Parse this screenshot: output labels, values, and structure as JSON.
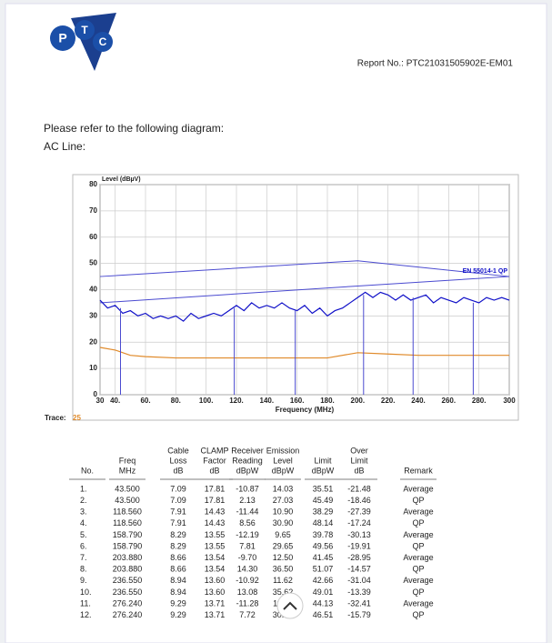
{
  "header": {
    "logo": [
      "P",
      "T",
      "C"
    ],
    "report_no": "Report No.: PTC21031505902E-EM01"
  },
  "intro": "Please refer to the following diagram:",
  "section": "AC Line:",
  "chart_data": {
    "type": "line",
    "y_label": "Level (dBµV)",
    "x_label": "Frequency (MHz)",
    "limit_label": "EN 55014-1 QP",
    "trace_label": "Trace:",
    "trace_no": "25",
    "xlim": [
      30,
      300
    ],
    "ylim": [
      0,
      80
    ],
    "xticks": [
      30,
      {
        "value": 40,
        "label": "40."
      },
      {
        "value": 60,
        "label": "60."
      },
      {
        "value": 80,
        "label": "80."
      },
      {
        "value": 100,
        "label": "100."
      },
      {
        "value": 120,
        "label": "120."
      },
      {
        "value": 140,
        "label": "140."
      },
      {
        "value": 160,
        "label": "160."
      },
      {
        "value": 180,
        "label": "180."
      },
      {
        "value": 200,
        "label": "200."
      },
      {
        "value": 220,
        "label": "220."
      },
      {
        "value": 240,
        "label": "240."
      },
      {
        "value": 260,
        "label": "260."
      },
      {
        "value": 280,
        "label": "280."
      },
      300
    ],
    "yticks": [
      0,
      10,
      20,
      30,
      40,
      50,
      60,
      70,
      80
    ],
    "grid": true,
    "series": [
      {
        "color": "#4a4ad0",
        "x": [
          30,
          200,
          300
        ],
        "values": [
          45,
          51,
          45
        ]
      },
      {
        "color": "#4a4ad0",
        "x": [
          30,
          200,
          300
        ],
        "values": [
          35,
          41.4,
          45
        ]
      },
      {
        "color": "#1010c8",
        "x": [
          30,
          35,
          40,
          45,
          50,
          55,
          60,
          65,
          70,
          75,
          80,
          85,
          90,
          95,
          100,
          105,
          110,
          115,
          120,
          125,
          130,
          135,
          140,
          145,
          150,
          155,
          160,
          165,
          170,
          175,
          180,
          185,
          190,
          195,
          200,
          205,
          210,
          215,
          220,
          225,
          230,
          235,
          240,
          245,
          250,
          255,
          260,
          265,
          270,
          275,
          280,
          285,
          290,
          295,
          300
        ],
        "values": [
          36,
          33,
          34,
          31,
          32,
          30,
          31,
          29,
          30,
          29,
          30,
          28,
          31,
          29,
          30,
          31,
          30,
          32,
          34,
          32,
          35,
          33,
          34,
          33,
          35,
          33,
          32,
          34,
          31,
          33,
          30,
          32,
          33,
          35,
          37,
          39,
          37,
          39,
          38,
          36,
          38,
          36,
          37,
          38,
          35,
          37,
          36,
          35,
          37,
          36,
          35,
          37,
          36,
          37,
          36
        ]
      },
      {
        "color": "#e08a2a",
        "x": [
          30,
          40,
          50,
          60,
          80,
          100,
          120,
          140,
          160,
          180,
          200,
          220,
          240,
          260,
          280,
          300
        ],
        "values": [
          18,
          17,
          15,
          14.5,
          14,
          14,
          14,
          14,
          14,
          14,
          16,
          15.5,
          15,
          15,
          15,
          15
        ]
      }
    ],
    "markers": {
      "color": "#4a4ad0",
      "x": [
        43.5,
        118.56,
        158.79,
        203.88,
        236.55,
        276.24
      ],
      "values": [
        33,
        33,
        32,
        38,
        37,
        35
      ]
    }
  },
  "table": {
    "header": [
      [
        "No."
      ],
      [
        "Freq",
        "MHz"
      ],
      [
        "Cable",
        "Loss",
        "dB"
      ],
      [
        "CLAMP",
        "Factor",
        "dB"
      ],
      [
        "Receiver",
        "Reading",
        "dBpW"
      ],
      [
        "Emission",
        "Level",
        "dBpW"
      ],
      [
        "Limit",
        "dBpW"
      ],
      [
        "Over",
        "Limit",
        "dB"
      ],
      [
        "Remark"
      ]
    ],
    "rows": [
      [
        "1.",
        "43.500",
        "7.09",
        "17.81",
        "-10.87",
        "14.03",
        "35.51",
        "-21.48",
        "Average"
      ],
      [
        "2.",
        "43.500",
        "7.09",
        "17.81",
        "2.13",
        "27.03",
        "45.49",
        "-18.46",
        "QP"
      ],
      [
        "3.",
        "118.560",
        "7.91",
        "14.43",
        "-11.44",
        "10.90",
        "38.29",
        "-27.39",
        "Average"
      ],
      [
        "4.",
        "118.560",
        "7.91",
        "14.43",
        "8.56",
        "30.90",
        "48.14",
        "-17.24",
        "QP"
      ],
      [
        "5.",
        "158.790",
        "8.29",
        "13.55",
        "-12.19",
        "9.65",
        "39.78",
        "-30.13",
        "Average"
      ],
      [
        "6.",
        "158.790",
        "8.29",
        "13.55",
        "7.81",
        "29.65",
        "49.56",
        "-19.91",
        "QP"
      ],
      [
        "7.",
        "203.880",
        "8.66",
        "13.54",
        "-9.70",
        "12.50",
        "41.45",
        "-28.95",
        "Average"
      ],
      [
        "8.",
        "203.880",
        "8.66",
        "13.54",
        "14.30",
        "36.50",
        "51.07",
        "-14.57",
        "QP"
      ],
      [
        "9.",
        "236.550",
        "8.94",
        "13.60",
        "-10.92",
        "11.62",
        "42.66",
        "-31.04",
        "Average"
      ],
      [
        "10.",
        "236.550",
        "8.94",
        "13.60",
        "13.08",
        "35.62",
        "49.01",
        "-13.39",
        "QP"
      ],
      [
        "11.",
        "276.240",
        "9.29",
        "13.71",
        "-11.28",
        "11.72",
        "44.13",
        "-32.41",
        "Average"
      ],
      [
        "12.",
        "276.240",
        "9.29",
        "13.71",
        "7.72",
        "30.72",
        "46.51",
        "-15.79",
        "QP"
      ]
    ]
  }
}
